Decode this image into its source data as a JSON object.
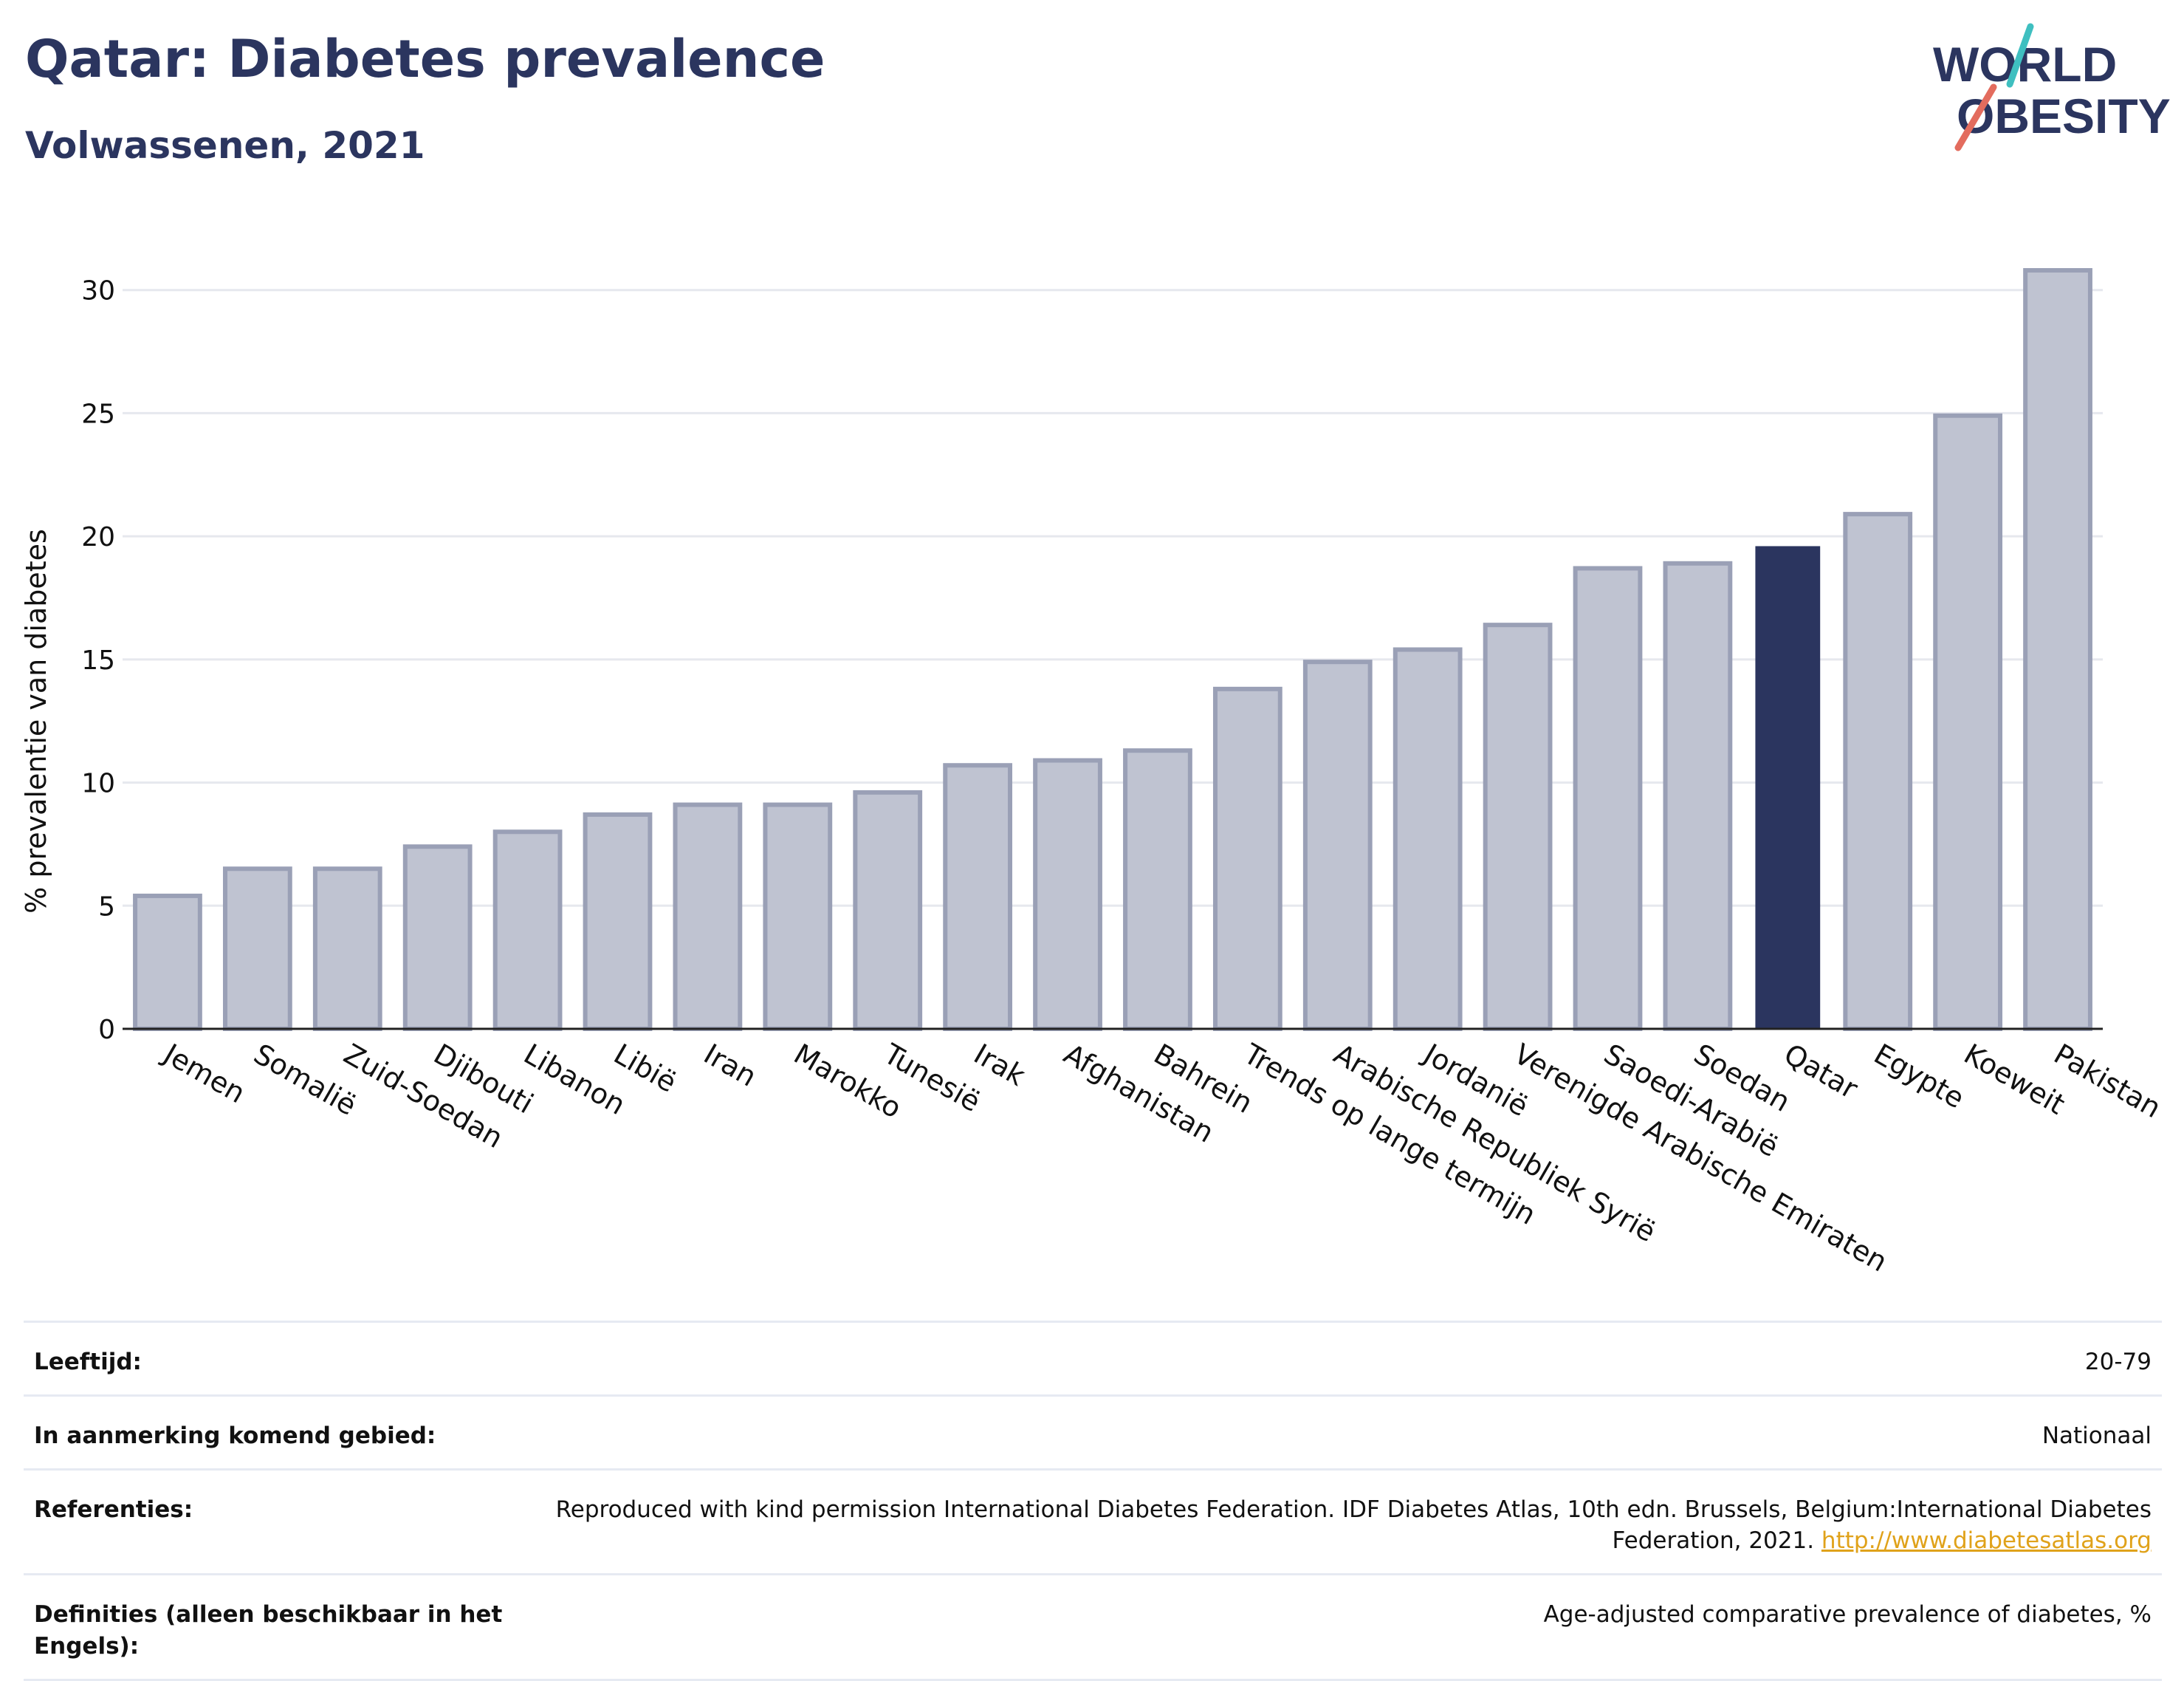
{
  "header": {
    "title": "Qatar: Diabetes prevalence",
    "subtitle": "Volwassenen, 2021",
    "logo_line1": "WORLD",
    "logo_line2": "OBESITY"
  },
  "chart_data": {
    "type": "bar",
    "ylabel": "% prevalentie van diabetes",
    "xlabel": "",
    "ylim": [
      0,
      32
    ],
    "yticks": [
      0,
      5,
      10,
      15,
      20,
      25,
      30
    ],
    "grid": true,
    "categories": [
      "Jemen",
      "Somalië",
      "Zuid-Soedan",
      "Djibouti",
      "Libanon",
      "Libië",
      "Iran",
      "Marokko",
      "Tunesië",
      "Irak",
      "Afghanistan",
      "Bahrein",
      "Trends op lange termijn",
      "Arabische Republiek Syrië",
      "Jordanië",
      "Verenigde Arabische Emiraten",
      "Saoedi-Arabië",
      "Soedan",
      "Qatar",
      "Egypte",
      "Koeweit",
      "Pakistan"
    ],
    "values": [
      5.4,
      6.5,
      6.5,
      7.4,
      8.0,
      8.7,
      9.1,
      9.1,
      9.6,
      10.7,
      10.9,
      11.3,
      13.8,
      14.9,
      15.4,
      16.4,
      18.7,
      18.9,
      19.6,
      20.9,
      24.9,
      30.8
    ],
    "highlight": "Qatar",
    "colors": {
      "default_fill": "#bfc3d1",
      "default_stroke": "#9aa0b6",
      "highlight_fill": "#2b355f",
      "axis": "#222222",
      "grid": "#e6e8ee"
    }
  },
  "info": {
    "age_label": "Leeftijd:",
    "age_value": "20-79",
    "area_label": "In aanmerking komend gebied:",
    "area_value": "Nationaal",
    "ref_label": "Referenties:",
    "ref_text": "Reproduced with kind permission International Diabetes Federation.  IDF Diabetes Atlas, 10th edn. Brussels, Belgium:International Diabetes Federation, 2021. ",
    "ref_link": "http://www.diabetesatlas.org",
    "def_label": "Definities (alleen beschikbaar in het Engels):",
    "def_value": "Age-adjusted comparative prevalence of diabetes, %"
  }
}
